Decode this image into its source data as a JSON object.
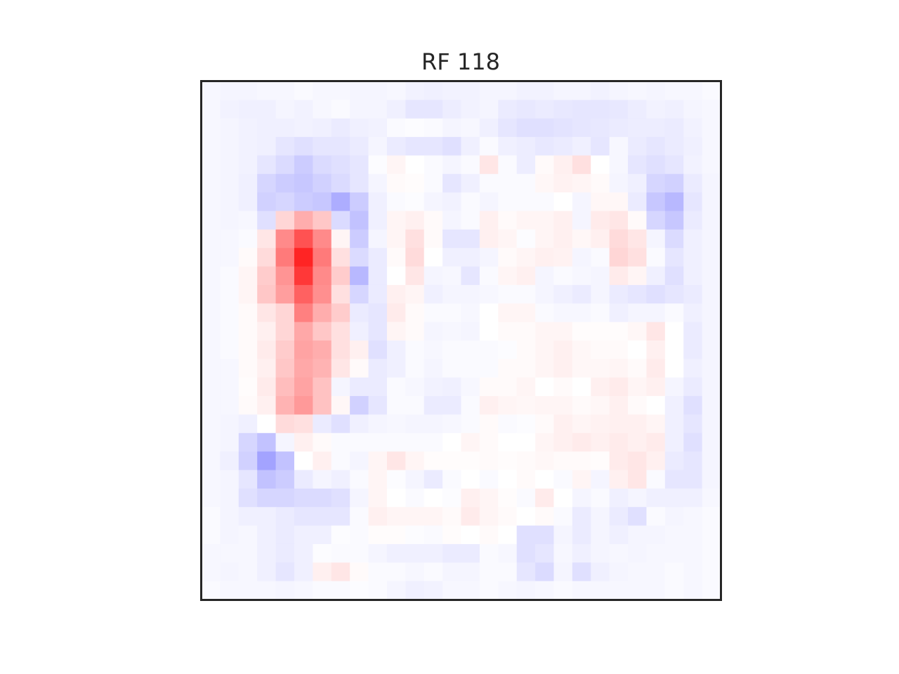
{
  "chart_data": {
    "type": "heatmap",
    "title": "RF 118",
    "colormap": "bwr",
    "vmin": -1,
    "vmax": 1,
    "grid": false,
    "axes_visible": false,
    "rows": 28,
    "cols": 28,
    "values": [
      [
        -0.03,
        -0.04,
        -0.04,
        -0.03,
        -0.03,
        -0.02,
        -0.03,
        -0.03,
        -0.04,
        -0.04,
        -0.03,
        -0.05,
        -0.06,
        -0.05,
        -0.05,
        -0.04,
        -0.04,
        -0.05,
        -0.05,
        -0.04,
        -0.04,
        -0.05,
        -0.04,
        -0.03,
        -0.04,
        -0.03,
        -0.03,
        -0.02
      ],
      [
        -0.03,
        -0.05,
        -0.06,
        -0.06,
        -0.04,
        -0.05,
        -0.03,
        -0.02,
        -0.04,
        -0.04,
        -0.06,
        -0.1,
        -0.1,
        -0.07,
        -0.05,
        -0.04,
        -0.08,
        -0.09,
        -0.08,
        -0.09,
        -0.1,
        -0.1,
        -0.09,
        -0.07,
        -0.05,
        -0.06,
        -0.04,
        -0.03
      ],
      [
        -0.03,
        -0.04,
        -0.05,
        -0.06,
        -0.06,
        -0.05,
        -0.06,
        -0.08,
        -0.06,
        -0.05,
        -0.02,
        -0.01,
        -0.02,
        -0.04,
        -0.03,
        -0.06,
        -0.1,
        -0.12,
        -0.12,
        -0.11,
        -0.1,
        -0.09,
        -0.08,
        -0.07,
        -0.07,
        -0.08,
        -0.05,
        -0.03
      ],
      [
        -0.03,
        -0.04,
        -0.05,
        -0.06,
        -0.1,
        -0.12,
        -0.1,
        -0.1,
        -0.08,
        -0.04,
        -0.08,
        -0.1,
        -0.1,
        -0.12,
        -0.06,
        -0.02,
        -0.06,
        -0.07,
        -0.09,
        -0.08,
        -0.06,
        -0.1,
        -0.03,
        -0.08,
        -0.1,
        -0.08,
        -0.06,
        -0.03
      ],
      [
        -0.03,
        -0.04,
        -0.05,
        -0.1,
        -0.14,
        -0.2,
        -0.14,
        -0.12,
        -0.1,
        -0.01,
        0.04,
        0.0,
        -0.02,
        -0.04,
        -0.02,
        0.1,
        -0.02,
        -0.07,
        0.02,
        0.06,
        0.12,
        0.0,
        -0.03,
        -0.1,
        -0.12,
        -0.1,
        -0.05,
        -0.03
      ],
      [
        -0.03,
        -0.04,
        -0.06,
        -0.16,
        -0.2,
        -0.22,
        -0.18,
        -0.14,
        -0.1,
        -0.04,
        0.02,
        0.01,
        -0.02,
        -0.1,
        -0.06,
        -0.02,
        -0.02,
        -0.02,
        0.03,
        0.05,
        0.04,
        0.02,
        -0.04,
        -0.06,
        -0.16,
        -0.18,
        -0.08,
        -0.04
      ],
      [
        -0.03,
        -0.04,
        -0.06,
        -0.18,
        -0.16,
        -0.2,
        -0.22,
        -0.32,
        -0.2,
        -0.06,
        -0.02,
        -0.01,
        -0.04,
        -0.05,
        -0.02,
        -0.04,
        -0.02,
        -0.02,
        -0.02,
        0.0,
        -0.04,
        0.03,
        0.03,
        -0.08,
        -0.22,
        -0.28,
        -0.1,
        -0.04
      ],
      [
        -0.03,
        -0.04,
        -0.03,
        -0.12,
        0.16,
        0.32,
        0.22,
        -0.14,
        -0.24,
        -0.06,
        0.04,
        0.06,
        0.02,
        -0.04,
        -0.02,
        0.06,
        0.02,
        0.04,
        0.04,
        0.06,
        -0.04,
        0.08,
        0.1,
        0.02,
        -0.16,
        -0.22,
        -0.08,
        -0.04
      ],
      [
        -0.03,
        -0.03,
        -0.02,
        0.1,
        0.46,
        0.68,
        0.46,
        0.04,
        -0.2,
        -0.04,
        0.04,
        0.12,
        0.02,
        -0.1,
        -0.1,
        0.06,
        0.04,
        -0.01,
        0.04,
        0.06,
        0.03,
        0.06,
        0.14,
        0.1,
        -0.04,
        -0.14,
        -0.06,
        -0.04
      ],
      [
        -0.03,
        -0.03,
        0.02,
        0.14,
        0.52,
        0.86,
        0.52,
        0.12,
        -0.14,
        -0.08,
        0.02,
        0.14,
        0.0,
        -0.06,
        -0.06,
        -0.04,
        0.02,
        0.04,
        0.06,
        0.05,
        -0.04,
        -0.02,
        0.16,
        0.12,
        -0.02,
        -0.1,
        -0.06,
        -0.04
      ],
      [
        -0.03,
        -0.02,
        0.04,
        0.2,
        0.42,
        0.78,
        0.46,
        0.2,
        -0.28,
        -0.08,
        0.0,
        0.1,
        -0.04,
        -0.03,
        -0.1,
        -0.02,
        0.04,
        0.06,
        -0.04,
        -0.02,
        -0.03,
        -0.04,
        0.08,
        0.04,
        -0.06,
        -0.12,
        -0.06,
        -0.04
      ],
      [
        -0.03,
        -0.02,
        0.04,
        0.22,
        0.38,
        0.62,
        0.44,
        0.12,
        -0.16,
        -0.08,
        0.06,
        0.04,
        -0.06,
        -0.04,
        -0.04,
        -0.03,
        -0.02,
        -0.02,
        -0.04,
        -0.06,
        -0.08,
        -0.04,
        -0.08,
        -0.1,
        -0.12,
        -0.1,
        -0.08,
        -0.04
      ],
      [
        -0.03,
        -0.02,
        0.02,
        0.1,
        0.16,
        0.5,
        0.32,
        0.2,
        -0.08,
        -0.1,
        0.08,
        0.02,
        -0.02,
        -0.02,
        -0.03,
        0.0,
        0.04,
        0.04,
        -0.02,
        -0.03,
        -0.03,
        -0.02,
        -0.06,
        -0.04,
        -0.04,
        -0.02,
        -0.06,
        -0.04
      ],
      [
        -0.03,
        -0.02,
        0.02,
        0.06,
        0.16,
        0.34,
        0.22,
        0.12,
        -0.06,
        -0.1,
        0.04,
        0.02,
        -0.04,
        -0.03,
        -0.04,
        0.0,
        0.02,
        0.02,
        0.04,
        0.04,
        0.01,
        0.01,
        0.01,
        0.03,
        0.1,
        0.0,
        -0.08,
        -0.04
      ],
      [
        -0.03,
        -0.02,
        0.02,
        0.08,
        0.2,
        0.36,
        0.32,
        0.12,
        0.06,
        -0.12,
        -0.06,
        -0.02,
        -0.03,
        -0.02,
        -0.02,
        -0.02,
        -0.01,
        0.02,
        0.04,
        0.06,
        0.03,
        0.02,
        0.02,
        0.0,
        0.06,
        0.0,
        -0.08,
        -0.04
      ],
      [
        -0.03,
        -0.03,
        0.02,
        0.06,
        0.22,
        0.34,
        0.3,
        0.1,
        0.02,
        -0.08,
        -0.06,
        -0.02,
        -0.04,
        -0.02,
        -0.02,
        -0.02,
        0.02,
        0.02,
        0.04,
        0.06,
        0.03,
        0.03,
        0.04,
        0.02,
        0.08,
        0.0,
        -0.06,
        -0.04
      ],
      [
        -0.03,
        -0.03,
        0.01,
        0.08,
        0.26,
        0.36,
        0.24,
        -0.04,
        -0.08,
        -0.08,
        -0.02,
        -0.03,
        -0.05,
        -0.06,
        -0.03,
        0.02,
        0.02,
        0.04,
        0.0,
        0.02,
        0.0,
        0.06,
        0.08,
        0.04,
        0.06,
        -0.04,
        -0.08,
        -0.04
      ],
      [
        -0.03,
        -0.03,
        0.02,
        0.06,
        0.3,
        0.4,
        0.24,
        0.03,
        -0.18,
        -0.1,
        -0.02,
        -0.02,
        -0.08,
        -0.08,
        -0.02,
        0.06,
        0.04,
        0.03,
        0.04,
        0.04,
        0.02,
        0.03,
        0.06,
        0.02,
        0.0,
        -0.06,
        -0.12,
        -0.04
      ],
      [
        -0.03,
        -0.04,
        -0.06,
        0.0,
        0.14,
        0.12,
        -0.08,
        -0.12,
        -0.06,
        -0.04,
        -0.03,
        -0.04,
        -0.04,
        -0.03,
        -0.02,
        0.02,
        -0.02,
        -0.01,
        0.02,
        0.06,
        0.04,
        0.05,
        0.06,
        0.06,
        0.04,
        -0.06,
        -0.1,
        -0.04
      ],
      [
        -0.03,
        -0.04,
        -0.16,
        -0.24,
        -0.04,
        0.06,
        0.02,
        -0.02,
        -0.02,
        -0.02,
        -0.02,
        -0.02,
        -0.02,
        0.0,
        0.04,
        0.02,
        0.0,
        0.0,
        0.04,
        0.06,
        0.08,
        0.06,
        0.08,
        0.06,
        0.08,
        -0.06,
        -0.12,
        -0.04
      ],
      [
        -0.03,
        -0.06,
        -0.18,
        -0.36,
        -0.24,
        0.0,
        0.06,
        -0.02,
        -0.04,
        0.04,
        0.1,
        0.04,
        0.01,
        0.01,
        0.01,
        0.02,
        0.01,
        0.02,
        0.03,
        0.02,
        0.02,
        0.01,
        0.08,
        0.1,
        0.06,
        -0.08,
        -0.1,
        -0.04
      ],
      [
        -0.03,
        -0.04,
        -0.1,
        -0.24,
        -0.2,
        -0.08,
        -0.04,
        -0.06,
        -0.02,
        0.04,
        -0.01,
        -0.04,
        -0.08,
        -0.02,
        0.0,
        -0.02,
        0.0,
        0.02,
        0.0,
        -0.02,
        0.04,
        -0.04,
        0.06,
        0.1,
        -0.02,
        -0.1,
        -0.1,
        -0.04
      ],
      [
        -0.03,
        -0.04,
        -0.12,
        -0.16,
        -0.16,
        -0.14,
        -0.14,
        -0.12,
        -0.04,
        0.04,
        0.0,
        -0.02,
        0.0,
        -0.01,
        0.06,
        0.04,
        0.01,
        -0.02,
        0.08,
        0.0,
        -0.04,
        -0.02,
        -0.06,
        -0.04,
        -0.06,
        -0.06,
        -0.06,
        -0.03
      ],
      [
        -0.02,
        -0.04,
        -0.06,
        -0.06,
        -0.08,
        -0.1,
        -0.1,
        -0.1,
        -0.02,
        0.06,
        0.04,
        0.04,
        0.04,
        0.02,
        0.08,
        0.04,
        0.02,
        0.0,
        0.02,
        -0.02,
        -0.08,
        -0.04,
        -0.08,
        -0.12,
        -0.02,
        -0.04,
        -0.03,
        -0.02
      ],
      [
        -0.02,
        -0.04,
        -0.03,
        -0.06,
        -0.08,
        -0.06,
        -0.06,
        -0.01,
        -0.02,
        0.01,
        0.01,
        -0.01,
        -0.02,
        0.01,
        0.0,
        0.02,
        0.0,
        -0.12,
        -0.12,
        -0.04,
        -0.08,
        -0.04,
        -0.06,
        -0.04,
        -0.04,
        -0.03,
        -0.03,
        -0.02
      ],
      [
        -0.03,
        -0.03,
        -0.03,
        -0.06,
        -0.08,
        -0.06,
        -0.01,
        -0.02,
        -0.02,
        -0.04,
        -0.06,
        -0.06,
        -0.06,
        -0.08,
        -0.08,
        -0.02,
        -0.03,
        -0.12,
        -0.1,
        -0.03,
        -0.06,
        -0.04,
        -0.03,
        -0.04,
        -0.03,
        -0.03,
        -0.03,
        -0.02
      ],
      [
        -0.03,
        -0.04,
        -0.03,
        -0.06,
        -0.1,
        -0.06,
        0.06,
        0.1,
        0.02,
        -0.02,
        -0.02,
        -0.03,
        -0.02,
        -0.04,
        -0.04,
        -0.02,
        -0.02,
        -0.1,
        -0.14,
        -0.04,
        -0.12,
        -0.06,
        -0.04,
        -0.03,
        -0.03,
        -0.02,
        -0.03,
        -0.02
      ],
      [
        -0.02,
        -0.03,
        -0.03,
        -0.03,
        -0.04,
        -0.03,
        -0.02,
        -0.02,
        -0.01,
        -0.02,
        -0.04,
        -0.06,
        -0.05,
        -0.03,
        -0.03,
        -0.02,
        -0.03,
        -0.04,
        -0.03,
        -0.02,
        -0.03,
        -0.03,
        -0.03,
        -0.03,
        -0.03,
        -0.02,
        -0.03,
        -0.02
      ]
    ]
  }
}
